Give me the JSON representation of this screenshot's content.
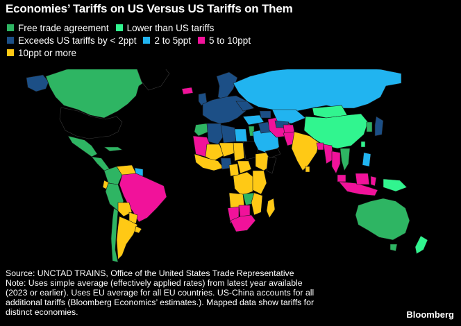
{
  "title": "Economies’ Tariffs on US Versus US Tariffs on Them",
  "colors": {
    "background": "#000000",
    "free_trade": "#2EB563",
    "lower": "#31F58F",
    "exceeds_lt2": "#1C4F86",
    "two_to_five": "#21B4F0",
    "five_to_ten": "#F1129A",
    "ten_plus": "#FFC915",
    "no_data": "#000000",
    "border": "#1a1a1a"
  },
  "legend": [
    {
      "label": "Free trade agreement",
      "color": "#2EB563"
    },
    {
      "label": "Lower than US tariffs",
      "color": "#31F58F"
    },
    {
      "label": "Exceeds US tariffs by < 2ppt",
      "color": "#1C4F86"
    },
    {
      "label": "2 to 5ppt",
      "color": "#21B4F0"
    },
    {
      "label": "5 to 10ppt",
      "color": "#F1129A"
    },
    {
      "label": "10ppt or more",
      "color": "#FFC915"
    }
  ],
  "footnote": {
    "line1": "Source: UNCTAD TRAINS, Office of the United States Trade Representative",
    "line2": "Note: Uses simple average (effectively applied rates) from latest year available",
    "line3": "(2023 or earlier). Uses EU average for all EU countries. US-China accounts for all",
    "line4": "additional tariffs (Bloomberg Economics’ estimates.). Mapped data show tariffs for",
    "line5": "distinct economies."
  },
  "brand": "Bloomberg"
}
